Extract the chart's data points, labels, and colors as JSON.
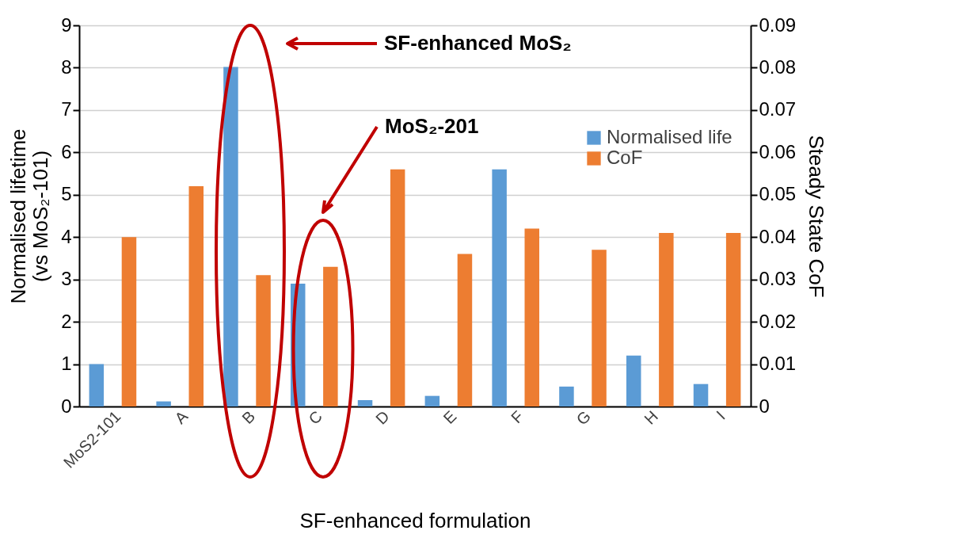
{
  "chart_data": {
    "type": "bar",
    "categories": [
      "MoS2-101",
      "A",
      "B",
      "C",
      "D",
      "E",
      "F",
      "G",
      "H",
      "I"
    ],
    "series": [
      {
        "name": "Normalised life",
        "color": "#5b9bd5",
        "values": [
          1.0,
          0.12,
          8.02,
          2.9,
          0.15,
          0.25,
          5.6,
          0.47,
          1.2,
          0.53
        ]
      },
      {
        "name": "CoF",
        "color": "#ed7d31",
        "axis": "y2",
        "values": [
          0.04,
          0.052,
          0.031,
          0.033,
          0.056,
          0.036,
          0.042,
          0.037,
          0.041,
          0.041
        ]
      }
    ],
    "ylim": [
      0,
      9
    ],
    "yticks": [
      0,
      1,
      2,
      3,
      4,
      5,
      6,
      7,
      8,
      9
    ],
    "y2lim": [
      0,
      0.09
    ],
    "y2ticks": [
      0,
      0.01,
      0.02,
      0.03,
      0.04,
      0.05,
      0.06,
      0.07,
      0.08,
      0.09
    ],
    "ylabel": "Normalised lifetime\n(vs MoS₂-101)",
    "y2label": "Steady State CoF",
    "xlabel": "SF-enhanced formulation",
    "annotations": [
      "SF-enhanced MoS₂",
      "MoS₂-201"
    ],
    "legend": "top right",
    "grid": "y"
  }
}
